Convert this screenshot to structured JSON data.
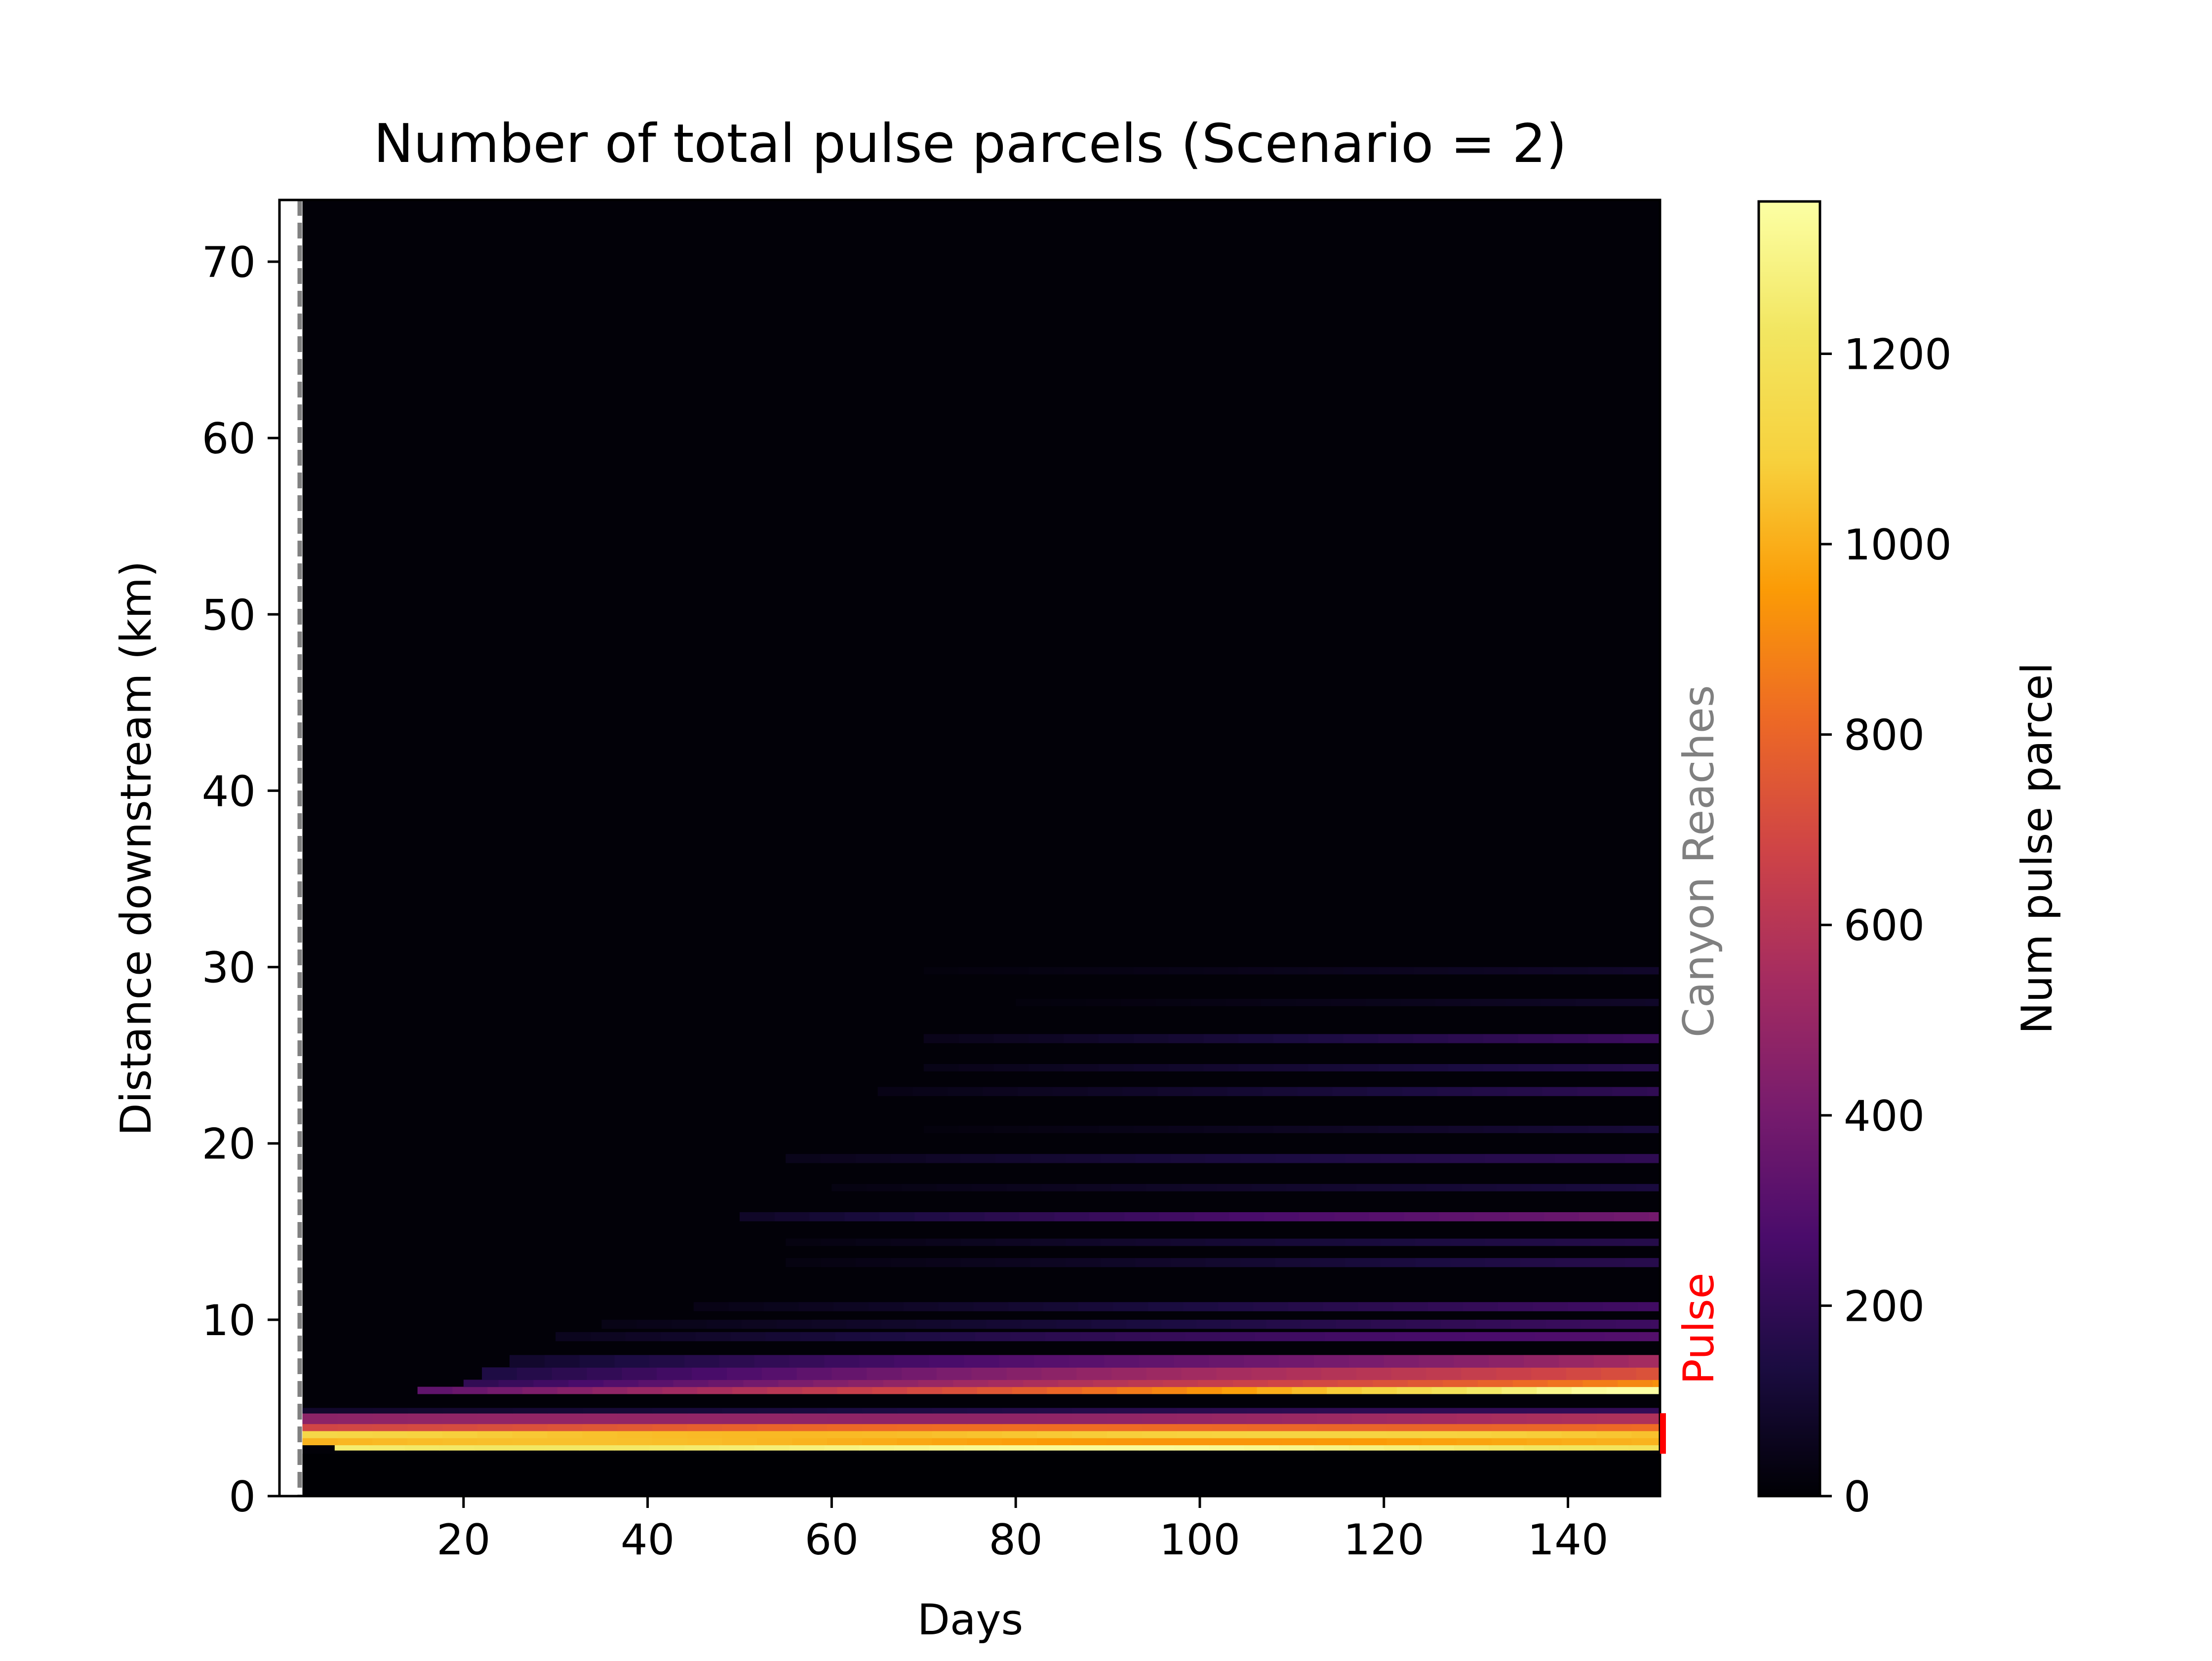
{
  "chart_data": {
    "type": "heatmap",
    "title": "Number of total pulse parcels (Scenario = 2)",
    "xlabel": "Days",
    "ylabel": "Distance downstream (km)",
    "xlim": [
      0,
      150
    ],
    "ylim": [
      0,
      73.5
    ],
    "xticks": [
      20,
      40,
      60,
      80,
      100,
      120,
      140
    ],
    "yticks": [
      0,
      10,
      20,
      30,
      40,
      50,
      60,
      70
    ],
    "colormap": "inferno",
    "colorbar": {
      "label": "Num pulse parcel",
      "range": [
        0,
        1360
      ],
      "ticks": [
        0,
        200,
        400,
        600,
        800,
        1000,
        1200
      ]
    },
    "data_start_day": 2.5,
    "no_data_day_range": [
      0,
      2.5
    ],
    "vline_day": 2.2,
    "bands": [
      {
        "y0": 2.6,
        "y1": 2.9,
        "start": 1300,
        "end": 1250,
        "from": 6
      },
      {
        "y0": 2.9,
        "y1": 3.3,
        "start": 1000,
        "end": 980,
        "from": 2.5
      },
      {
        "y0": 3.3,
        "y1": 3.7,
        "start": 1100,
        "end": 1040,
        "from": 2.5
      },
      {
        "y0": 3.7,
        "y1": 4.1,
        "start": 720,
        "end": 860,
        "from": 2.5
      },
      {
        "y0": 4.1,
        "y1": 4.7,
        "start": 450,
        "end": 550,
        "from": 2.5
      },
      {
        "y0": 4.7,
        "y1": 5.0,
        "start": 90,
        "end": 210,
        "from": 2.5
      },
      {
        "y0": 5.8,
        "y1": 6.2,
        "start": 320,
        "end": 1360,
        "from": 15
      },
      {
        "y0": 6.2,
        "y1": 6.6,
        "start": 200,
        "end": 950,
        "from": 20
      },
      {
        "y0": 6.6,
        "y1": 7.3,
        "start": 150,
        "end": 780,
        "from": 22
      },
      {
        "y0": 7.3,
        "y1": 8.0,
        "start": 90,
        "end": 560,
        "from": 25
      },
      {
        "y0": 8.8,
        "y1": 9.3,
        "start": 60,
        "end": 320,
        "from": 30
      },
      {
        "y0": 9.5,
        "y1": 10.0,
        "start": 40,
        "end": 230,
        "from": 35
      },
      {
        "y0": 10.5,
        "y1": 11.0,
        "start": 40,
        "end": 240,
        "from": 45
      },
      {
        "y0": 13.0,
        "y1": 13.5,
        "start": 30,
        "end": 170,
        "from": 55
      },
      {
        "y0": 14.2,
        "y1": 14.6,
        "start": 30,
        "end": 180,
        "from": 55
      },
      {
        "y0": 15.6,
        "y1": 16.1,
        "start": 80,
        "end": 420,
        "from": 50
      },
      {
        "y0": 17.3,
        "y1": 17.7,
        "start": 30,
        "end": 140,
        "from": 60
      },
      {
        "y0": 18.9,
        "y1": 19.4,
        "start": 50,
        "end": 210,
        "from": 55
      },
      {
        "y0": 20.6,
        "y1": 21.0,
        "start": 20,
        "end": 120,
        "from": 70
      },
      {
        "y0": 22.7,
        "y1": 23.2,
        "start": 40,
        "end": 190,
        "from": 65
      },
      {
        "y0": 24.1,
        "y1": 24.5,
        "start": 40,
        "end": 180,
        "from": 70
      },
      {
        "y0": 25.7,
        "y1": 26.2,
        "start": 50,
        "end": 230,
        "from": 70
      },
      {
        "y0": 27.8,
        "y1": 28.2,
        "start": 20,
        "end": 80,
        "from": 80
      },
      {
        "y0": 29.6,
        "y1": 30.0,
        "start": 20,
        "end": 90,
        "from": 70
      }
    ],
    "annotations": [
      {
        "text": "Canyon Reaches",
        "color": "#808080",
        "y_center": 36
      },
      {
        "text": "Pulse",
        "color": "#ff0000",
        "y_center": 3.5,
        "marker_range_km": [
          2.4,
          4.7
        ]
      }
    ]
  }
}
